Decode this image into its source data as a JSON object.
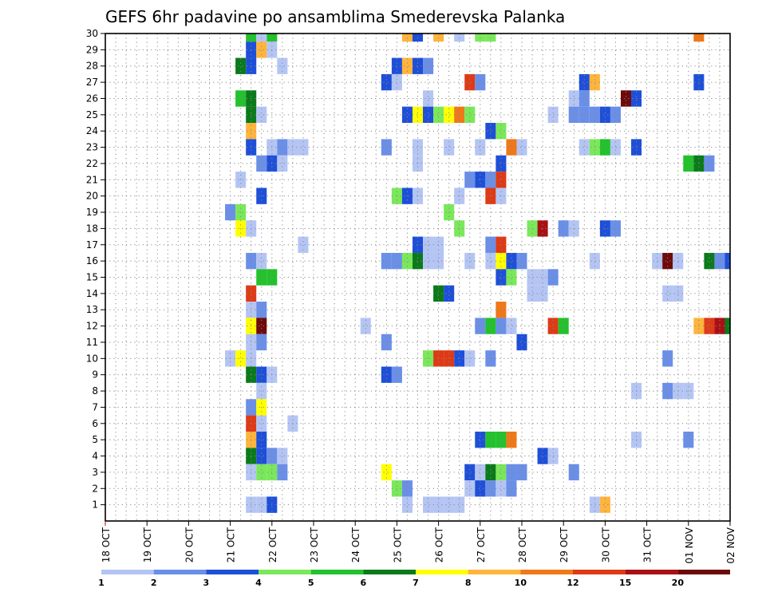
{
  "chart_data": {
    "type": "heatmap",
    "title": "GEFS 6hr padavine po ansamblima Smederevska Palanka",
    "xlabel": "",
    "ylabel": "",
    "x_tick_labels": [
      "18 OCT",
      "19 OCT",
      "20 OCT",
      "21 OCT",
      "22 OCT",
      "23 OCT",
      "24 OCT",
      "25 OCT",
      "26 OCT",
      "27 OCT",
      "28 OCT",
      "29 OCT",
      "30 OCT",
      "31 OCT",
      "01 NOV",
      "02 NOV"
    ],
    "x_steps_per_day": 4,
    "x_range_steps": [
      0,
      60
    ],
    "y_tick_labels": [
      1,
      2,
      3,
      4,
      5,
      6,
      7,
      8,
      9,
      10,
      11,
      12,
      13,
      14,
      15,
      16,
      17,
      18,
      19,
      20,
      21,
      22,
      23,
      24,
      25,
      26,
      27,
      28,
      29,
      30
    ],
    "y_range": [
      0,
      30
    ],
    "grid": "dotted",
    "colorbar": {
      "tick_labels": [
        "1",
        "2",
        "3",
        "4",
        "5",
        "6",
        "7",
        "8",
        "10",
        "12",
        "15",
        "20"
      ],
      "colors": [
        "#b4c5f4",
        "#6a8fe8",
        "#1e4fd8",
        "#7ae85a",
        "#22c22c",
        "#0a7a1a",
        "#ffff00",
        "#ffb43c",
        "#f07818",
        "#de3a16",
        "#a81014",
        "#6e0a0a"
      ]
    },
    "cell_levels": [
      "#b4c5f4",
      "#6a8fe8",
      "#1e4fd8",
      "#7ae85a",
      "#22c22c",
      "#0a7a1a",
      "#ffff00",
      "#ffb43c",
      "#f07818",
      "#de3a16",
      "#a81014",
      "#6e0a0a"
    ],
    "cells": [
      [
        14,
        30,
        5
      ],
      [
        15,
        30,
        1
      ],
      [
        16,
        30,
        5
      ],
      [
        29,
        30,
        8
      ],
      [
        30,
        30,
        3
      ],
      [
        32,
        30,
        8
      ],
      [
        34,
        30,
        1
      ],
      [
        36,
        30,
        4
      ],
      [
        37,
        30,
        4
      ],
      [
        57,
        30,
        9
      ],
      [
        14,
        29,
        3
      ],
      [
        15,
        29,
        8
      ],
      [
        16,
        29,
        1
      ],
      [
        13,
        28,
        6
      ],
      [
        14,
        28,
        3
      ],
      [
        17,
        28,
        1
      ],
      [
        28,
        28,
        3
      ],
      [
        29,
        28,
        8
      ],
      [
        30,
        28,
        3
      ],
      [
        31,
        28,
        2
      ],
      [
        27,
        27,
        3
      ],
      [
        28,
        27,
        1
      ],
      [
        35,
        27,
        10
      ],
      [
        36,
        27,
        2
      ],
      [
        46,
        27,
        3
      ],
      [
        47,
        27,
        8
      ],
      [
        57,
        27,
        3
      ],
      [
        13,
        26,
        5
      ],
      [
        14,
        26,
        6
      ],
      [
        31,
        26,
        1
      ],
      [
        45,
        26,
        1
      ],
      [
        46,
        26,
        2
      ],
      [
        50,
        26,
        12
      ],
      [
        51,
        26,
        3
      ],
      [
        14,
        25,
        6
      ],
      [
        15,
        25,
        1
      ],
      [
        29,
        25,
        3
      ],
      [
        30,
        25,
        7
      ],
      [
        31,
        25,
        3
      ],
      [
        32,
        25,
        4
      ],
      [
        33,
        25,
        7
      ],
      [
        34,
        25,
        9
      ],
      [
        35,
        25,
        4
      ],
      [
        43,
        25,
        1
      ],
      [
        45,
        25,
        2
      ],
      [
        46,
        25,
        2
      ],
      [
        47,
        25,
        2
      ],
      [
        48,
        25,
        3
      ],
      [
        49,
        25,
        2
      ],
      [
        14,
        24,
        8
      ],
      [
        37,
        24,
        3
      ],
      [
        38,
        24,
        4
      ],
      [
        14,
        23,
        3
      ],
      [
        16,
        23,
        1
      ],
      [
        17,
        23,
        2
      ],
      [
        18,
        23,
        1
      ],
      [
        19,
        23,
        1
      ],
      [
        27,
        23,
        2
      ],
      [
        30,
        23,
        1
      ],
      [
        33,
        23,
        1
      ],
      [
        36,
        23,
        1
      ],
      [
        39,
        23,
        9
      ],
      [
        40,
        23,
        1
      ],
      [
        46,
        23,
        1
      ],
      [
        47,
        23,
        4
      ],
      [
        48,
        23,
        5
      ],
      [
        49,
        23,
        1
      ],
      [
        51,
        23,
        3
      ],
      [
        15,
        22,
        2
      ],
      [
        16,
        22,
        3
      ],
      [
        17,
        22,
        1
      ],
      [
        30,
        22,
        1
      ],
      [
        38,
        22,
        3
      ],
      [
        56,
        22,
        5
      ],
      [
        57,
        22,
        6
      ],
      [
        58,
        22,
        2
      ],
      [
        13,
        21,
        1
      ],
      [
        35,
        21,
        2
      ],
      [
        36,
        21,
        3
      ],
      [
        37,
        21,
        2
      ],
      [
        38,
        21,
        10
      ],
      [
        15,
        20,
        3
      ],
      [
        28,
        20,
        4
      ],
      [
        29,
        20,
        3
      ],
      [
        30,
        20,
        1
      ],
      [
        34,
        20,
        1
      ],
      [
        37,
        20,
        10
      ],
      [
        38,
        20,
        1
      ],
      [
        12,
        19,
        2
      ],
      [
        13,
        19,
        4
      ],
      [
        33,
        19,
        4
      ],
      [
        13,
        18,
        7
      ],
      [
        14,
        18,
        1
      ],
      [
        34,
        18,
        4
      ],
      [
        41,
        18,
        4
      ],
      [
        42,
        18,
        11
      ],
      [
        44,
        18,
        2
      ],
      [
        45,
        18,
        1
      ],
      [
        48,
        18,
        3
      ],
      [
        49,
        18,
        2
      ],
      [
        19,
        17,
        1
      ],
      [
        30,
        17,
        3
      ],
      [
        31,
        17,
        1
      ],
      [
        32,
        17,
        1
      ],
      [
        37,
        17,
        2
      ],
      [
        38,
        17,
        10
      ],
      [
        14,
        16,
        2
      ],
      [
        15,
        16,
        1
      ],
      [
        27,
        16,
        2
      ],
      [
        28,
        16,
        2
      ],
      [
        29,
        16,
        4
      ],
      [
        30,
        16,
        6
      ],
      [
        31,
        16,
        1
      ],
      [
        32,
        16,
        1
      ],
      [
        35,
        16,
        1
      ],
      [
        37,
        16,
        1
      ],
      [
        38,
        16,
        7
      ],
      [
        39,
        16,
        3
      ],
      [
        40,
        16,
        2
      ],
      [
        47,
        16,
        1
      ],
      [
        53,
        16,
        1
      ],
      [
        54,
        16,
        12
      ],
      [
        55,
        16,
        1
      ],
      [
        58,
        16,
        6
      ],
      [
        59,
        16,
        2
      ],
      [
        60,
        16,
        3
      ],
      [
        15,
        15,
        5
      ],
      [
        16,
        15,
        5
      ],
      [
        38,
        15,
        3
      ],
      [
        39,
        15,
        4
      ],
      [
        41,
        15,
        1
      ],
      [
        42,
        15,
        1
      ],
      [
        43,
        15,
        2
      ],
      [
        14,
        14,
        10
      ],
      [
        32,
        14,
        6
      ],
      [
        33,
        14,
        3
      ],
      [
        41,
        14,
        1
      ],
      [
        42,
        14,
        1
      ],
      [
        54,
        14,
        1
      ],
      [
        55,
        14,
        1
      ],
      [
        14,
        13,
        1
      ],
      [
        15,
        13,
        2
      ],
      [
        38,
        13,
        9
      ],
      [
        14,
        12,
        7
      ],
      [
        15,
        12,
        12
      ],
      [
        25,
        12,
        1
      ],
      [
        36,
        12,
        2
      ],
      [
        37,
        12,
        5
      ],
      [
        38,
        12,
        2
      ],
      [
        39,
        12,
        1
      ],
      [
        43,
        12,
        10
      ],
      [
        44,
        12,
        5
      ],
      [
        57,
        12,
        8
      ],
      [
        58,
        12,
        10
      ],
      [
        59,
        12,
        11
      ],
      [
        60,
        12,
        6
      ],
      [
        14,
        11,
        1
      ],
      [
        15,
        11,
        2
      ],
      [
        27,
        11,
        2
      ],
      [
        40,
        11,
        3
      ],
      [
        12,
        10,
        1
      ],
      [
        13,
        10,
        7
      ],
      [
        14,
        10,
        1
      ],
      [
        31,
        10,
        4
      ],
      [
        32,
        10,
        10
      ],
      [
        33,
        10,
        10
      ],
      [
        34,
        10,
        3
      ],
      [
        35,
        10,
        1
      ],
      [
        37,
        10,
        2
      ],
      [
        54,
        10,
        2
      ],
      [
        14,
        9,
        6
      ],
      [
        15,
        9,
        3
      ],
      [
        16,
        9,
        1
      ],
      [
        27,
        9,
        3
      ],
      [
        28,
        9,
        2
      ],
      [
        15,
        8,
        1
      ],
      [
        51,
        8,
        1
      ],
      [
        54,
        8,
        2
      ],
      [
        55,
        8,
        1
      ],
      [
        56,
        8,
        1
      ],
      [
        14,
        7,
        2
      ],
      [
        15,
        7,
        7
      ],
      [
        14,
        6,
        10
      ],
      [
        15,
        6,
        1
      ],
      [
        18,
        6,
        1
      ],
      [
        14,
        5,
        8
      ],
      [
        15,
        5,
        3
      ],
      [
        36,
        5,
        3
      ],
      [
        37,
        5,
        5
      ],
      [
        38,
        5,
        5
      ],
      [
        39,
        5,
        9
      ],
      [
        51,
        5,
        1
      ],
      [
        56,
        5,
        2
      ],
      [
        14,
        4,
        6
      ],
      [
        15,
        4,
        3
      ],
      [
        16,
        4,
        2
      ],
      [
        17,
        4,
        1
      ],
      [
        42,
        4,
        3
      ],
      [
        43,
        4,
        1
      ],
      [
        14,
        3,
        1
      ],
      [
        15,
        3,
        4
      ],
      [
        16,
        3,
        4
      ],
      [
        17,
        3,
        2
      ],
      [
        27,
        3,
        7
      ],
      [
        35,
        3,
        3
      ],
      [
        36,
        3,
        1
      ],
      [
        37,
        3,
        6
      ],
      [
        38,
        3,
        4
      ],
      [
        39,
        3,
        2
      ],
      [
        40,
        3,
        2
      ],
      [
        45,
        3,
        2
      ],
      [
        28,
        2,
        4
      ],
      [
        29,
        2,
        2
      ],
      [
        35,
        2,
        1
      ],
      [
        36,
        2,
        3
      ],
      [
        37,
        2,
        2
      ],
      [
        38,
        2,
        1
      ],
      [
        39,
        2,
        2
      ],
      [
        14,
        1,
        1
      ],
      [
        15,
        1,
        1
      ],
      [
        16,
        1,
        3
      ],
      [
        29,
        1,
        1
      ],
      [
        31,
        1,
        1
      ],
      [
        32,
        1,
        1
      ],
      [
        33,
        1,
        1
      ],
      [
        34,
        1,
        1
      ],
      [
        47,
        1,
        1
      ],
      [
        48,
        1,
        8
      ]
    ]
  }
}
